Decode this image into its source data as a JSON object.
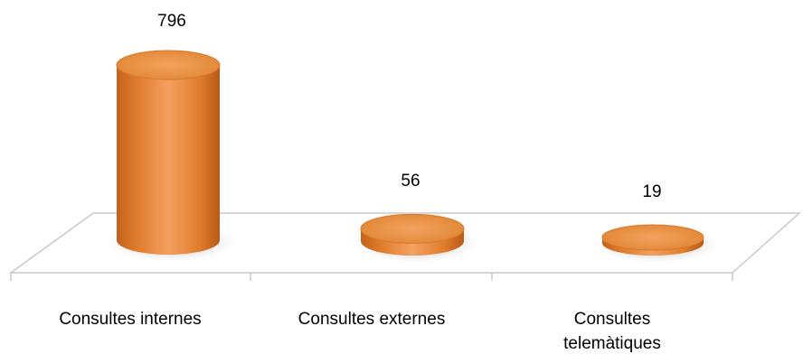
{
  "chart_data": {
    "type": "bar",
    "style": "3d-cylinder",
    "categories": [
      "Consultes internes",
      "Consultes externes",
      "Consultes telemàtiques"
    ],
    "category_lines": [
      [
        "Consultes internes"
      ],
      [
        "Consultes externes"
      ],
      [
        "Consultes",
        "telemàtiques"
      ]
    ],
    "values": [
      796,
      56,
      19
    ],
    "data_labels": [
      "796",
      "56",
      "19"
    ],
    "bar_color": "#e8883a",
    "title": "",
    "xlabel": "",
    "ylabel": "",
    "ylim": [
      0,
      796
    ],
    "grid": false,
    "legend": "none"
  }
}
